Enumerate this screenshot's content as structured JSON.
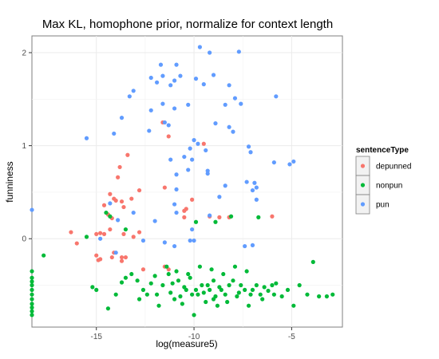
{
  "chart_data": {
    "type": "scatter",
    "title": "Max KL, homophone prior, normalize for context length",
    "xlabel": "log(measure5)",
    "ylabel": "funniness",
    "xlim": [
      -18.3,
      -2.4
    ],
    "ylim": [
      -0.95,
      2.18
    ],
    "x_ticks": [
      -15,
      -10,
      -5
    ],
    "x_tick_labels": [
      "-15",
      "-10",
      "-5"
    ],
    "y_ticks": [
      0,
      1,
      2
    ],
    "y_tick_labels": [
      "0",
      "1",
      "2"
    ],
    "grid": true,
    "legend": {
      "title": "sentenceType",
      "placement": "right"
    },
    "series": [
      {
        "name": "depunned",
        "color": "#F8766D",
        "points": [
          [
            -11.6,
            1.25
          ],
          [
            -9.5,
            1.02
          ],
          [
            -13.4,
            0.9
          ],
          [
            -11.3,
            1.1
          ],
          [
            -13.8,
            0.77
          ],
          [
            -13.9,
            0.66
          ],
          [
            -11.5,
            0.55
          ],
          [
            -12.8,
            0.52
          ],
          [
            -13.7,
            0.4
          ],
          [
            -14.3,
            0.48
          ],
          [
            -14.1,
            0.43
          ],
          [
            -14.0,
            0.41
          ],
          [
            -13.2,
            0.43
          ],
          [
            -10.4,
            0.32
          ],
          [
            -14.6,
            0.36
          ],
          [
            -13.6,
            0.34
          ],
          [
            -14.4,
            0.26
          ],
          [
            -14.2,
            0.22
          ],
          [
            -16.3,
            0.07
          ],
          [
            -16.0,
            -0.05
          ],
          [
            -15.0,
            0.05
          ],
          [
            -14.8,
            0.06
          ],
          [
            -14.6,
            0.05
          ],
          [
            -14.3,
            0.1
          ],
          [
            -13.6,
            0.05
          ],
          [
            -13.1,
            0.02
          ],
          [
            -12.8,
            0.07
          ],
          [
            -10.5,
            0.23
          ],
          [
            -10.5,
            0.3
          ],
          [
            -10.1,
            0.42
          ],
          [
            -9.2,
            0.24
          ],
          [
            -8.7,
            0.23
          ],
          [
            -8.2,
            0.23
          ],
          [
            -6.0,
            0.24
          ],
          [
            -13.7,
            -0.2
          ],
          [
            -14.2,
            -0.2
          ],
          [
            -14.8,
            -0.22
          ],
          [
            -14.1,
            -0.15
          ],
          [
            -13.5,
            -0.2
          ],
          [
            -15.0,
            -0.18
          ],
          [
            -11.5,
            -0.3
          ],
          [
            -11.3,
            -0.33
          ],
          [
            -12.6,
            -0.33
          ],
          [
            -14.9,
            -0.23
          ],
          [
            -13.7,
            -0.24
          ]
        ]
      },
      {
        "name": "nonpun",
        "color": "#00BA38",
        "points": [
          [
            -18.3,
            -0.35
          ],
          [
            -18.3,
            -0.42
          ],
          [
            -18.3,
            -0.46
          ],
          [
            -18.3,
            -0.5
          ],
          [
            -18.3,
            -0.55
          ],
          [
            -18.3,
            -0.6
          ],
          [
            -18.3,
            -0.65
          ],
          [
            -18.3,
            -0.7
          ],
          [
            -18.3,
            -0.74
          ],
          [
            -18.3,
            -0.78
          ],
          [
            -18.3,
            -0.82
          ],
          [
            -17.7,
            -0.18
          ],
          [
            -15.5,
            0.02
          ],
          [
            -14.5,
            0.28
          ],
          [
            -13.5,
            0.1
          ],
          [
            -14.3,
            0.24
          ],
          [
            -9.9,
            0.18
          ],
          [
            -8.9,
            0.18
          ],
          [
            -8.1,
            0.24
          ],
          [
            -6.7,
            0.23
          ],
          [
            -15.2,
            -0.52
          ],
          [
            -15.0,
            -0.55
          ],
          [
            -14.4,
            -0.75
          ],
          [
            -14.0,
            -0.6
          ],
          [
            -13.7,
            -0.47
          ],
          [
            -13.5,
            -0.42
          ],
          [
            -13.2,
            -0.38
          ],
          [
            -12.9,
            -0.45
          ],
          [
            -12.6,
            -0.55
          ],
          [
            -12.2,
            -0.48
          ],
          [
            -11.9,
            -0.6
          ],
          [
            -11.6,
            -0.5
          ],
          [
            -11.3,
            -0.38
          ],
          [
            -11.0,
            -0.65
          ],
          [
            -10.8,
            -0.45
          ],
          [
            -10.6,
            -0.7
          ],
          [
            -10.4,
            -0.55
          ],
          [
            -10.2,
            -0.42
          ],
          [
            -10.0,
            -0.82
          ],
          [
            -9.8,
            -0.6
          ],
          [
            -9.6,
            -0.5
          ],
          [
            -9.4,
            -0.68
          ],
          [
            -9.2,
            -0.55
          ],
          [
            -9.0,
            -0.45
          ],
          [
            -8.8,
            -0.72
          ],
          [
            -8.6,
            -0.55
          ],
          [
            -8.4,
            -0.6
          ],
          [
            -8.2,
            -0.5
          ],
          [
            -8.0,
            -0.45
          ],
          [
            -7.8,
            -0.62
          ],
          [
            -7.6,
            -0.5
          ],
          [
            -7.4,
            -0.55
          ],
          [
            -7.2,
            -0.72
          ],
          [
            -7.0,
            -0.55
          ],
          [
            -6.8,
            -0.5
          ],
          [
            -6.6,
            -0.6
          ],
          [
            -6.4,
            -0.52
          ],
          [
            -6.2,
            -0.56
          ],
          [
            -6.0,
            -0.5
          ],
          [
            -5.8,
            -0.48
          ],
          [
            -5.5,
            -0.62
          ],
          [
            -5.2,
            -0.55
          ],
          [
            -4.9,
            -0.72
          ],
          [
            -4.6,
            -0.5
          ],
          [
            -4.2,
            -0.6
          ],
          [
            -3.9,
            -0.25
          ],
          [
            -3.6,
            -0.62
          ],
          [
            -3.2,
            -0.62
          ],
          [
            -2.9,
            -0.6
          ],
          [
            -12.0,
            -0.4
          ],
          [
            -11.4,
            -0.3
          ],
          [
            -10.9,
            -0.35
          ],
          [
            -10.3,
            -0.38
          ],
          [
            -9.7,
            -0.3
          ],
          [
            -9.1,
            -0.33
          ],
          [
            -8.5,
            -0.38
          ],
          [
            -7.9,
            -0.3
          ],
          [
            -7.3,
            -0.35
          ],
          [
            -12.8,
            -0.65
          ],
          [
            -12.4,
            -0.6
          ],
          [
            -11.8,
            -0.72
          ],
          [
            -11.2,
            -0.58
          ],
          [
            -10.7,
            -0.62
          ],
          [
            -10.1,
            -0.6
          ],
          [
            -9.5,
            -0.58
          ],
          [
            -8.9,
            -0.62
          ],
          [
            -8.3,
            -0.68
          ],
          [
            -7.7,
            -0.58
          ],
          [
            -7.1,
            -0.6
          ],
          [
            -6.5,
            -0.65
          ],
          [
            -5.9,
            -0.6
          ],
          [
            -11.1,
            -0.48
          ],
          [
            -10.5,
            -0.52
          ],
          [
            -9.9,
            -0.55
          ],
          [
            -9.3,
            -0.5
          ],
          [
            -8.7,
            -0.52
          ],
          [
            -9.0,
            -0.65
          ]
        ]
      },
      {
        "name": "pun",
        "color": "#619CFF",
        "points": [
          [
            -9.7,
            2.06
          ],
          [
            -9.2,
            2.0
          ],
          [
            -7.7,
            2.01
          ],
          [
            -11.7,
            1.87
          ],
          [
            -10.9,
            1.87
          ],
          [
            -11.6,
            1.75
          ],
          [
            -10.7,
            1.75
          ],
          [
            -9.0,
            1.76
          ],
          [
            -9.9,
            1.72
          ],
          [
            -11.9,
            1.68
          ],
          [
            -11.0,
            1.7
          ],
          [
            -11.2,
            1.65
          ],
          [
            -12.2,
            1.73
          ],
          [
            -9.5,
            1.66
          ],
          [
            -8.2,
            1.65
          ],
          [
            -13.1,
            1.59
          ],
          [
            -13.3,
            1.53
          ],
          [
            -7.9,
            1.51
          ],
          [
            -7.6,
            1.45
          ],
          [
            -5.8,
            1.53
          ],
          [
            -11.6,
            1.45
          ],
          [
            -11.0,
            1.4
          ],
          [
            -10.3,
            1.44
          ],
          [
            -8.4,
            1.44
          ],
          [
            -12.2,
            1.38
          ],
          [
            -13.7,
            1.3
          ],
          [
            -8.9,
            1.24
          ],
          [
            -8.2,
            1.2
          ],
          [
            -8.0,
            1.15
          ],
          [
            -11.5,
            1.25
          ],
          [
            -11.3,
            1.22
          ],
          [
            -12.3,
            1.16
          ],
          [
            -14.1,
            1.13
          ],
          [
            -10.0,
            1.06
          ],
          [
            -9.8,
            1.02
          ],
          [
            -10.2,
            0.97
          ],
          [
            -9.4,
            0.95
          ],
          [
            -10.5,
            0.88
          ],
          [
            -7.2,
            0.99
          ],
          [
            -7.1,
            0.93
          ],
          [
            -5.9,
            0.82
          ],
          [
            -5.1,
            0.8
          ],
          [
            -4.9,
            0.83
          ],
          [
            -15.5,
            1.08
          ],
          [
            -11.2,
            0.85
          ],
          [
            -10.1,
            0.85
          ],
          [
            -10.3,
            0.74
          ],
          [
            -9.3,
            0.73
          ],
          [
            -9.3,
            0.7
          ],
          [
            -10.9,
            0.69
          ],
          [
            -6.9,
            0.6
          ],
          [
            -6.8,
            0.55
          ],
          [
            -6.8,
            0.42
          ],
          [
            -7.3,
            0.61
          ],
          [
            -8.4,
            0.57
          ],
          [
            -8.7,
            0.45
          ],
          [
            -10.9,
            0.28
          ],
          [
            -7.0,
            0.52
          ],
          [
            -10.9,
            0.53
          ],
          [
            -11.0,
            0.37
          ],
          [
            -13.1,
            0.28
          ],
          [
            -13.9,
            0.2
          ],
          [
            -14.3,
            0.38
          ],
          [
            -10.1,
            0.1
          ],
          [
            -12.6,
            -0.02
          ],
          [
            -9.2,
            0.25
          ],
          [
            -18.3,
            0.31
          ],
          [
            -14.8,
            0.0
          ],
          [
            -10.0,
            -0.02
          ],
          [
            -11.5,
            -0.04
          ],
          [
            -10.2,
            -0.02
          ],
          [
            -11.0,
            -0.08
          ],
          [
            -7.0,
            -0.07
          ],
          [
            -7.4,
            -0.08
          ],
          [
            -14.0,
            -0.15
          ],
          [
            -12.0,
            0.19
          ]
        ]
      }
    ]
  }
}
